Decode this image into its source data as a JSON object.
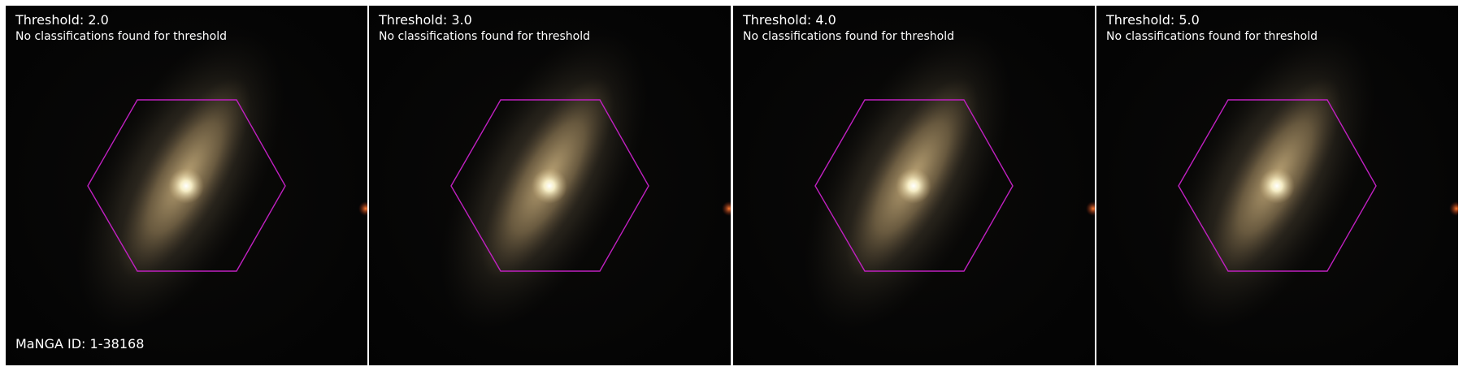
{
  "panels": [
    {
      "threshold_label": "Threshold: 2.0",
      "message": "No classifications found for threshold",
      "manga_id": "MaNGA ID: 1-38168"
    },
    {
      "threshold_label": "Threshold: 3.0",
      "message": "No classifications found for threshold"
    },
    {
      "threshold_label": "Threshold: 4.0",
      "message": "No classifications found for threshold"
    },
    {
      "threshold_label": "Threshold: 5.0",
      "message": "No classifications found for threshold"
    }
  ],
  "colors": {
    "hexagon": "#c020c0",
    "galaxy_core": "#fffbe0",
    "galaxy_body": "#a08a60",
    "background": "#050505",
    "text": "#ffffff"
  }
}
